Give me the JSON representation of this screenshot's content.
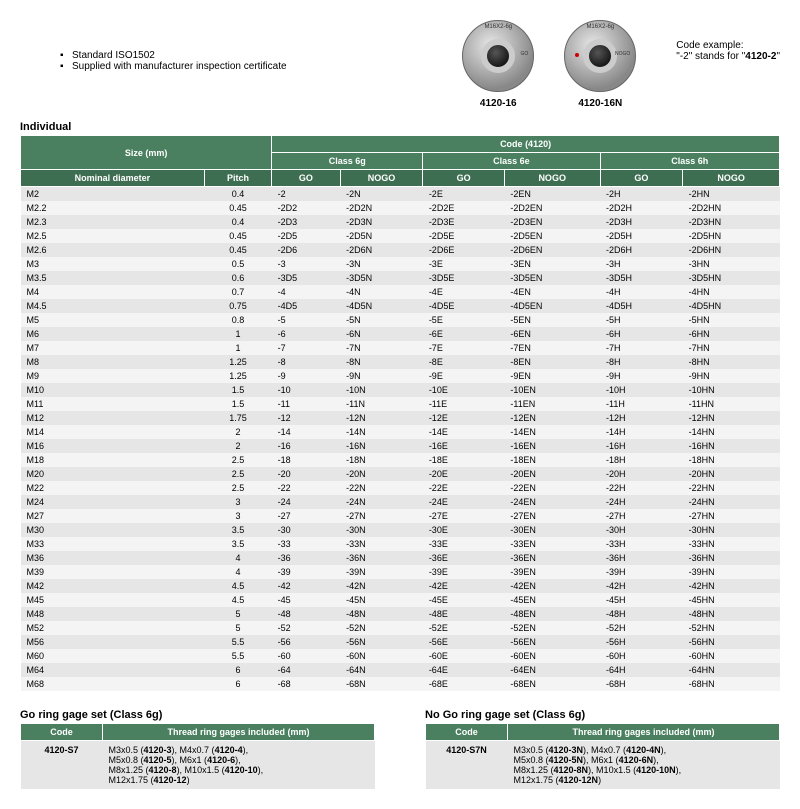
{
  "notes": [
    "Standard ISO1502",
    "Supplied with manufacturer inspection certificate"
  ],
  "products": [
    {
      "ring_text": "M16X2-6g",
      "side": "GO",
      "code": "4120-16",
      "dot": false
    },
    {
      "ring_text": "M16X2-6g",
      "side": "NOGO",
      "code": "4120-16N",
      "dot": true
    }
  ],
  "code_example": {
    "label": "Code example:",
    "text1": "\"-2\" stands for \"",
    "bold": "4120-2",
    "text2": "\""
  },
  "main_table": {
    "title": "Individual",
    "h1": {
      "size": "Size (mm)",
      "code": "Code (4120)"
    },
    "h2": {
      "c6g": "Class 6g",
      "c6e": "Class 6e",
      "c6h": "Class 6h"
    },
    "h3": {
      "nd": "Nominal diameter",
      "pitch": "Pitch",
      "go": "GO",
      "nogo": "NOGO"
    },
    "rows": [
      [
        "M2",
        "0.4",
        "-2",
        "-2N",
        "-2E",
        "-2EN",
        "-2H",
        "-2HN"
      ],
      [
        "M2.2",
        "0.45",
        "-2D2",
        "-2D2N",
        "-2D2E",
        "-2D2EN",
        "-2D2H",
        "-2D2HN"
      ],
      [
        "M2.3",
        "0.4",
        "-2D3",
        "-2D3N",
        "-2D3E",
        "-2D3EN",
        "-2D3H",
        "-2D3HN"
      ],
      [
        "M2.5",
        "0.45",
        "-2D5",
        "-2D5N",
        "-2D5E",
        "-2D5EN",
        "-2D5H",
        "-2D5HN"
      ],
      [
        "M2.6",
        "0.45",
        "-2D6",
        "-2D6N",
        "-2D6E",
        "-2D6EN",
        "-2D6H",
        "-2D6HN"
      ],
      [
        "M3",
        "0.5",
        "-3",
        "-3N",
        "-3E",
        "-3EN",
        "-3H",
        "-3HN"
      ],
      [
        "M3.5",
        "0.6",
        "-3D5",
        "-3D5N",
        "-3D5E",
        "-3D5EN",
        "-3D5H",
        "-3D5HN"
      ],
      [
        "M4",
        "0.7",
        "-4",
        "-4N",
        "-4E",
        "-4EN",
        "-4H",
        "-4HN"
      ],
      [
        "M4.5",
        "0.75",
        "-4D5",
        "-4D5N",
        "-4D5E",
        "-4D5EN",
        "-4D5H",
        "-4D5HN"
      ],
      [
        "M5",
        "0.8",
        "-5",
        "-5N",
        "-5E",
        "-5EN",
        "-5H",
        "-5HN"
      ],
      [
        "M6",
        "1",
        "-6",
        "-6N",
        "-6E",
        "-6EN",
        "-6H",
        "-6HN"
      ],
      [
        "M7",
        "1",
        "-7",
        "-7N",
        "-7E",
        "-7EN",
        "-7H",
        "-7HN"
      ],
      [
        "M8",
        "1.25",
        "-8",
        "-8N",
        "-8E",
        "-8EN",
        "-8H",
        "-8HN"
      ],
      [
        "M9",
        "1.25",
        "-9",
        "-9N",
        "-9E",
        "-9EN",
        "-9H",
        "-9HN"
      ],
      [
        "M10",
        "1.5",
        "-10",
        "-10N",
        "-10E",
        "-10EN",
        "-10H",
        "-10HN"
      ],
      [
        "M11",
        "1.5",
        "-11",
        "-11N",
        "-11E",
        "-11EN",
        "-11H",
        "-11HN"
      ],
      [
        "M12",
        "1.75",
        "-12",
        "-12N",
        "-12E",
        "-12EN",
        "-12H",
        "-12HN"
      ],
      [
        "M14",
        "2",
        "-14",
        "-14N",
        "-14E",
        "-14EN",
        "-14H",
        "-14HN"
      ],
      [
        "M16",
        "2",
        "-16",
        "-16N",
        "-16E",
        "-16EN",
        "-16H",
        "-16HN"
      ],
      [
        "M18",
        "2.5",
        "-18",
        "-18N",
        "-18E",
        "-18EN",
        "-18H",
        "-18HN"
      ],
      [
        "M20",
        "2.5",
        "-20",
        "-20N",
        "-20E",
        "-20EN",
        "-20H",
        "-20HN"
      ],
      [
        "M22",
        "2.5",
        "-22",
        "-22N",
        "-22E",
        "-22EN",
        "-22H",
        "-22HN"
      ],
      [
        "M24",
        "3",
        "-24",
        "-24N",
        "-24E",
        "-24EN",
        "-24H",
        "-24HN"
      ],
      [
        "M27",
        "3",
        "-27",
        "-27N",
        "-27E",
        "-27EN",
        "-27H",
        "-27HN"
      ],
      [
        "M30",
        "3.5",
        "-30",
        "-30N",
        "-30E",
        "-30EN",
        "-30H",
        "-30HN"
      ],
      [
        "M33",
        "3.5",
        "-33",
        "-33N",
        "-33E",
        "-33EN",
        "-33H",
        "-33HN"
      ],
      [
        "M36",
        "4",
        "-36",
        "-36N",
        "-36E",
        "-36EN",
        "-36H",
        "-36HN"
      ],
      [
        "M39",
        "4",
        "-39",
        "-39N",
        "-39E",
        "-39EN",
        "-39H",
        "-39HN"
      ],
      [
        "M42",
        "4.5",
        "-42",
        "-42N",
        "-42E",
        "-42EN",
        "-42H",
        "-42HN"
      ],
      [
        "M45",
        "4.5",
        "-45",
        "-45N",
        "-45E",
        "-45EN",
        "-45H",
        "-45HN"
      ],
      [
        "M48",
        "5",
        "-48",
        "-48N",
        "-48E",
        "-48EN",
        "-48H",
        "-48HN"
      ],
      [
        "M52",
        "5",
        "-52",
        "-52N",
        "-52E",
        "-52EN",
        "-52H",
        "-52HN"
      ],
      [
        "M56",
        "5.5",
        "-56",
        "-56N",
        "-56E",
        "-56EN",
        "-56H",
        "-56HN"
      ],
      [
        "M60",
        "5.5",
        "-60",
        "-60N",
        "-60E",
        "-60EN",
        "-60H",
        "-60HN"
      ],
      [
        "M64",
        "6",
        "-64",
        "-64N",
        "-64E",
        "-64EN",
        "-64H",
        "-64HN"
      ],
      [
        "M68",
        "6",
        "-68",
        "-68N",
        "-68E",
        "-68EN",
        "-68H",
        "-68HN"
      ]
    ]
  },
  "go_set": {
    "title": "Go ring gage set (Class 6g)",
    "h": {
      "code": "Code",
      "incl": "Thread ring gages included (mm)"
    },
    "code": "4120-S7",
    "items": [
      {
        "t": "M3x0.5 (",
        "b": "4120-3",
        "e": "), M4x0.7 ("
      },
      {
        "t": "",
        "b": "4120-4",
        "e": "),"
      },
      {
        "t": "M5x0.8 (",
        "b": "4120-5",
        "e": "), M6x1 ("
      },
      {
        "t": "",
        "b": "4120-6",
        "e": "),"
      },
      {
        "t": "M8x1.25 (",
        "b": "4120-8",
        "e": "), M10x1.5 ("
      },
      {
        "t": "",
        "b": "4120-10",
        "e": "),"
      },
      {
        "t": "M12x1.75 (",
        "b": "4120-12",
        "e": ")"
      }
    ]
  },
  "nogo_set": {
    "title": "No Go ring gage set (Class 6g)",
    "h": {
      "code": "Code",
      "incl": "Thread ring gages included (mm)"
    },
    "code": "4120-S7N",
    "items": [
      {
        "t": "M3x0.5 (",
        "b": "4120-3N",
        "e": "), M4x0.7 ("
      },
      {
        "t": "",
        "b": "4120-4N",
        "e": "),"
      },
      {
        "t": "M5x0.8 (",
        "b": "4120-5N",
        "e": "), M6x1 ("
      },
      {
        "t": "",
        "b": "4120-6N",
        "e": "),"
      },
      {
        "t": "M8x1.25 (",
        "b": "4120-8N",
        "e": "), M10x1.5 ("
      },
      {
        "t": "",
        "b": "4120-10N",
        "e": "),"
      },
      {
        "t": "M12x1.75 (",
        "b": "4120-12N",
        "e": ")"
      }
    ]
  }
}
